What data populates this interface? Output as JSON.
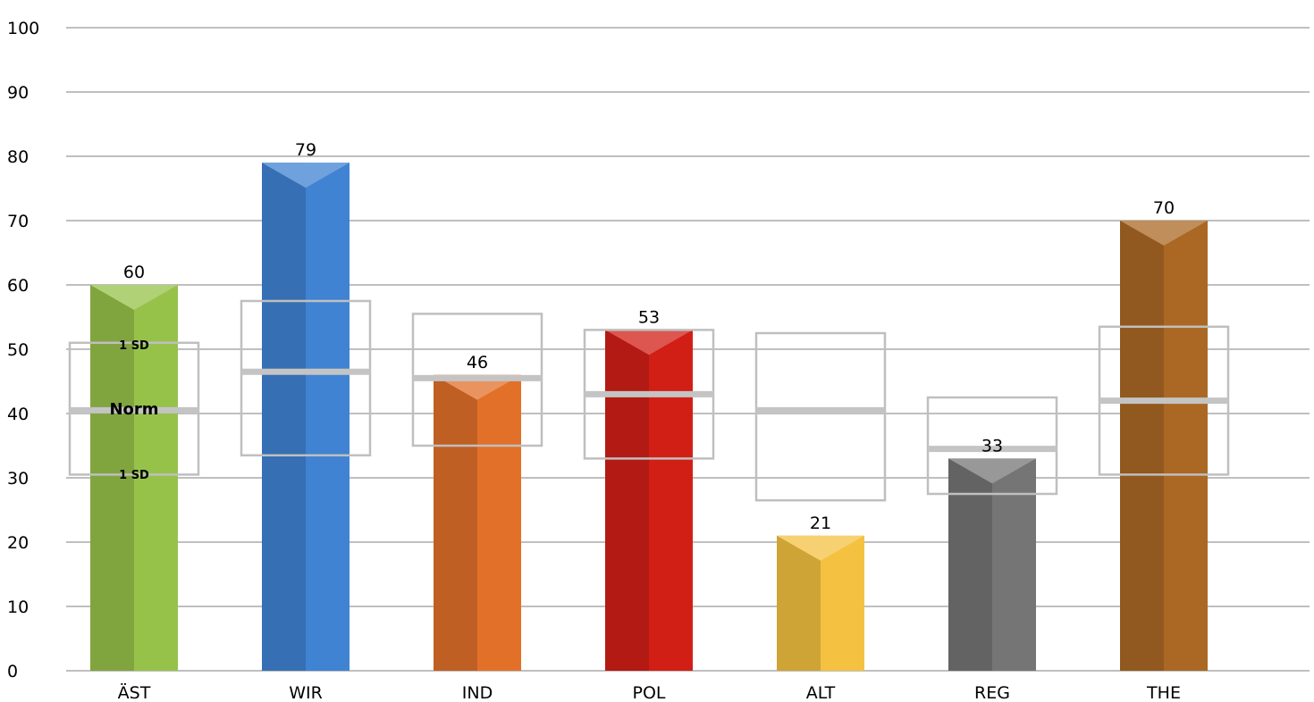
{
  "chart_data": {
    "type": "bar",
    "title": "",
    "xlabel": "",
    "ylabel": "",
    "ylim": [
      0,
      100
    ],
    "yticks": [
      0,
      10,
      20,
      30,
      40,
      50,
      60,
      70,
      80,
      90,
      100
    ],
    "categories": [
      "ÄST",
      "WIR",
      "IND",
      "POL",
      "ALT",
      "REG",
      "THE"
    ],
    "values": [
      60,
      79,
      46,
      53,
      21,
      33,
      70
    ],
    "colors": [
      "#97c24a",
      "#3f83d2",
      "#e27029",
      "#d11f16",
      "#f4c141",
      "#757575",
      "#aa6824"
    ],
    "norm": [
      40.5,
      46.5,
      45.5,
      43,
      40.5,
      34.5,
      42
    ],
    "band_low": [
      30.5,
      33.5,
      35,
      33,
      26.5,
      27.5,
      30.5
    ],
    "band_high": [
      51,
      57.5,
      55.5,
      53,
      52.5,
      42.5,
      53.5
    ],
    "grid": true,
    "annotations": {
      "norm_label": "Norm",
      "sd_upper_label": "1 SD",
      "sd_lower_label": "1 SD"
    }
  }
}
